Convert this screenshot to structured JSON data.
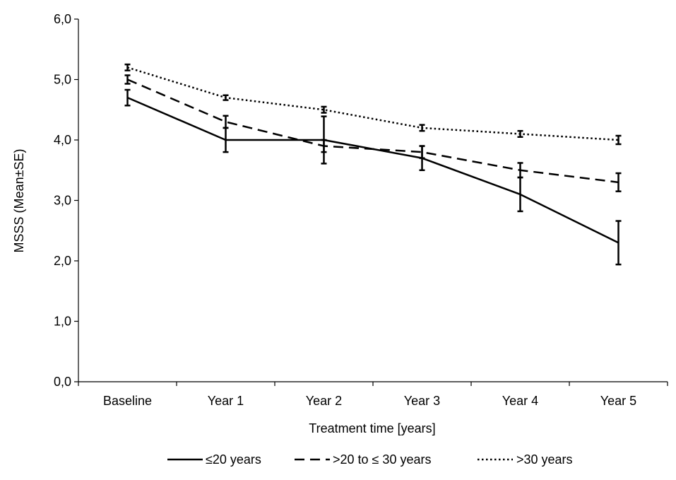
{
  "chart_data": {
    "type": "line",
    "title": "",
    "xlabel": "Treatment time [years]",
    "ylabel": "MSSS (Mean±SE)",
    "categories": [
      "Baseline",
      "Year 1",
      "Year 2",
      "Year 3",
      "Year 4",
      "Year 5"
    ],
    "ylim": [
      0,
      6
    ],
    "yticks": [
      "0,0",
      "1,0",
      "2,0",
      "3,0",
      "4,0",
      "5,0",
      "6,0"
    ],
    "grid": false,
    "legend_position": "bottom",
    "series": [
      {
        "name": "≤20 years",
        "style": "solid",
        "values": [
          4.7,
          4.0,
          4.0,
          3.7,
          3.1,
          2.3
        ],
        "se": [
          0.13,
          0.2,
          0.39,
          0.2,
          0.28,
          0.36
        ],
        "color": "#000000"
      },
      {
        "name": ">20 to ≤ 30 years",
        "style": "dashed",
        "values": [
          5.0,
          4.3,
          3.9,
          3.8,
          3.5,
          3.3
        ],
        "se": [
          0.07,
          0.1,
          0.1,
          0.1,
          0.12,
          0.15
        ],
        "color": "#000000"
      },
      {
        "name": ">30 years",
        "style": "dotted",
        "values": [
          5.2,
          4.7,
          4.5,
          4.2,
          4.1,
          4.0
        ],
        "se": [
          0.05,
          0.04,
          0.05,
          0.05,
          0.05,
          0.07
        ],
        "color": "#000000"
      }
    ]
  }
}
